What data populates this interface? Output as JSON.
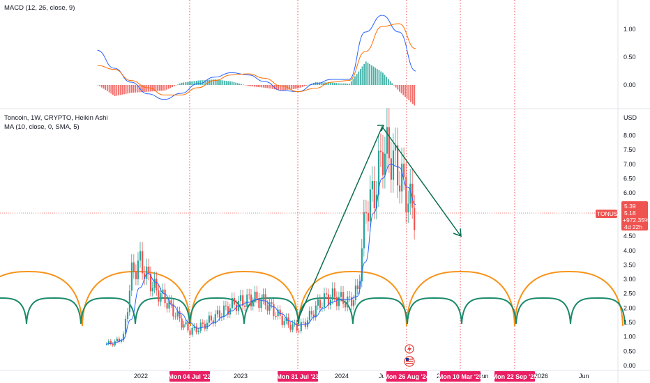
{
  "colors": {
    "up": "#26a69a",
    "down": "#ef5350",
    "macd_line": "#2962ff",
    "signal_line": "#ff6d00",
    "ma_line": "#2962ff",
    "cycle_orange": "#f7931a",
    "cycle_green": "#1b8a6b",
    "trend_arrow": "#0b6e4f",
    "vline": "#e53935",
    "date_tag": "#e91e63",
    "price_tag": "#ef5350",
    "axis_text": "#131722",
    "grid": "#e0e3eb"
  },
  "macd_panel": {
    "title": "MACD (12, 26, close, 9)",
    "ticks": [
      "1.00",
      "0.50",
      "0.00"
    ]
  },
  "price_panel": {
    "title": "Toncoin, 1W, CRYPTO, Heikin Ashi",
    "ma_label": "MA (10, close, 0, SMA, 5)",
    "currency": "USD",
    "ticks": [
      "8.00",
      "7.50",
      "7.00",
      "6.50",
      "6.00",
      "5.50",
      "5.00",
      "4.50",
      "4.00",
      "3.50",
      "3.00",
      "2.50",
      "2.00",
      "1.50",
      "1.00",
      "0.50",
      "0.00"
    ],
    "price_tag": {
      "symbol": "TONUSD",
      "price": "5.39",
      "low": "5.18",
      "change": "+972.35%",
      "countdown": "4d 22h"
    }
  },
  "time_axis": {
    "labels": [
      "2022",
      "2023",
      "2024",
      "Ju",
      "20",
      "Jun",
      "2026",
      "Jun"
    ],
    "date_tags": [
      "Mon 04 Jul '22",
      "Mon 31 Jul '23",
      "Mon 26 Aug '24",
      "Mon 10 Mar '25",
      "Mon 22 Sep '25"
    ]
  },
  "chart_data": [
    {
      "type": "bar",
      "name": "MACD",
      "title": "MACD (12, 26, close, 9)",
      "ylim": [
        -0.35,
        1.3
      ],
      "x_dates": [
        "2021-08",
        "2021-10",
        "2021-12",
        "2022-02",
        "2022-04",
        "2022-06",
        "2022-08",
        "2022-10",
        "2022-12",
        "2023-02",
        "2023-04",
        "2023-06",
        "2023-08",
        "2023-10",
        "2023-12",
        "2024-02",
        "2024-04",
        "2024-06",
        "2024-08",
        "2024-10"
      ],
      "series": [
        {
          "name": "macd",
          "values": [
            0.62,
            0.3,
            0.05,
            -0.16,
            -0.26,
            -0.15,
            0.02,
            0.14,
            0.22,
            0.18,
            0.06,
            -0.1,
            -0.12,
            0.02,
            0.1,
            0.1,
            0.95,
            1.25,
            0.95,
            0.25
          ]
        },
        {
          "name": "signal",
          "values": [
            0.35,
            0.28,
            0.08,
            -0.05,
            -0.18,
            -0.18,
            -0.05,
            0.08,
            0.18,
            0.2,
            0.12,
            -0.02,
            -0.12,
            -0.06,
            0.05,
            0.08,
            0.6,
            1.05,
            1.1,
            0.65
          ]
        },
        {
          "name": "histogram",
          "values": [
            0.0,
            -0.2,
            -0.14,
            -0.12,
            -0.1,
            0.04,
            0.08,
            0.1,
            0.06,
            -0.02,
            -0.05,
            -0.1,
            -0.06,
            0.05,
            0.04,
            0.02,
            0.42,
            0.22,
            -0.12,
            -0.4
          ]
        }
      ]
    },
    {
      "type": "line",
      "name": "Toncoin price (Heikin Ashi, 1W)",
      "title": "Toncoin, 1W, CRYPTO, Heikin Ashi",
      "ylim": [
        0,
        8.4
      ],
      "x_dates": [
        "2021-09",
        "2021-10",
        "2021-11",
        "2021-12",
        "2022-01",
        "2022-02",
        "2022-03",
        "2022-04",
        "2022-05",
        "2022-06",
        "2022-07",
        "2022-08",
        "2022-09",
        "2022-10",
        "2022-11",
        "2022-12",
        "2023-01",
        "2023-02",
        "2023-03",
        "2023-04",
        "2023-05",
        "2023-06",
        "2023-07",
        "2023-08",
        "2023-09",
        "2023-10",
        "2023-11",
        "2023-12",
        "2024-01",
        "2024-02",
        "2024-03",
        "2024-04",
        "2024-05",
        "2024-06",
        "2024-07",
        "2024-08",
        "2024-09",
        "2024-10"
      ],
      "series": [
        {
          "name": "close",
          "values": [
            0.75,
            0.8,
            1.0,
            3.2,
            3.6,
            3.0,
            2.6,
            2.3,
            1.9,
            1.5,
            1.2,
            1.3,
            1.5,
            1.7,
            1.9,
            2.1,
            2.2,
            2.3,
            2.3,
            2.2,
            1.9,
            1.6,
            1.4,
            1.3,
            1.6,
            2.0,
            2.3,
            2.4,
            2.3,
            2.2,
            2.6,
            5.5,
            6.0,
            7.5,
            7.3,
            6.6,
            5.8,
            5.2
          ]
        },
        {
          "name": "MA (10, close, 0, SMA, 5)",
          "values": [
            0.75,
            0.78,
            0.9,
            1.6,
            2.7,
            3.2,
            2.9,
            2.5,
            2.1,
            1.8,
            1.5,
            1.3,
            1.35,
            1.5,
            1.7,
            1.9,
            2.1,
            2.2,
            2.3,
            2.25,
            2.05,
            1.8,
            1.55,
            1.4,
            1.45,
            1.7,
            2.0,
            2.2,
            2.3,
            2.3,
            2.4,
            3.6,
            5.3,
            6.5,
            7.0,
            6.9,
            6.2,
            5.6
          ]
        }
      ]
    }
  ]
}
